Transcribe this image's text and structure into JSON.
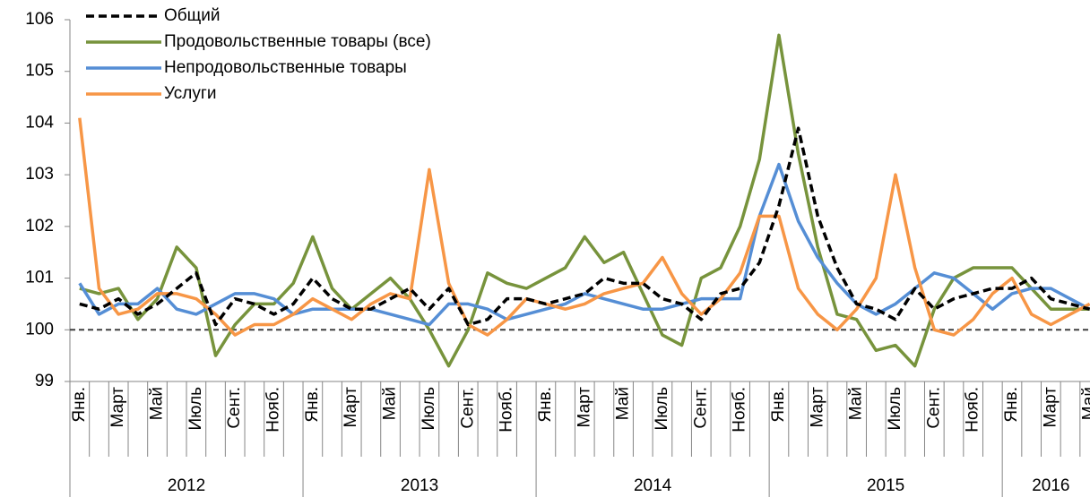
{
  "chart_data": {
    "type": "line",
    "categories": [
      "Янв.",
      null,
      "Март",
      null,
      "Май",
      null,
      "Июль",
      null,
      "Сент.",
      null,
      "Нояб.",
      null,
      "Янв.",
      null,
      "Март",
      null,
      "Май",
      null,
      "Июль",
      null,
      "Сент.",
      null,
      "Нояб.",
      null,
      "Янв.",
      null,
      "Март",
      null,
      "Май",
      null,
      "Июль",
      null,
      "Сент.",
      null,
      "Нояб.",
      null,
      "Янв.",
      null,
      "Март",
      null,
      "Май",
      null,
      "Июль",
      null,
      "Сент.",
      null,
      "Нояб.",
      null,
      "Янв.",
      null,
      "Март",
      null,
      "Май"
    ],
    "years": [
      "2012",
      "2013",
      "2014",
      "2015",
      "2016"
    ],
    "ylim": [
      99,
      106
    ],
    "yticks": [
      99,
      100,
      101,
      102,
      103,
      104,
      105,
      106
    ],
    "reference_line": 100,
    "legend": "top-left",
    "series": [
      {
        "name": "Общий",
        "color": "#000000",
        "dashed": true,
        "values": [
          100.5,
          100.4,
          100.6,
          100.3,
          100.5,
          100.8,
          101.1,
          100.1,
          100.6,
          100.5,
          100.3,
          100.5,
          101.0,
          100.6,
          100.4,
          100.4,
          100.6,
          100.8,
          100.4,
          100.8,
          100.1,
          100.2,
          100.6,
          100.6,
          100.5,
          100.6,
          100.7,
          101.0,
          100.9,
          100.9,
          100.6,
          100.5,
          100.2,
          100.7,
          100.8,
          101.3,
          102.4,
          103.9,
          102.2,
          101.2,
          100.5,
          100.4,
          100.2,
          100.8,
          100.4,
          100.6,
          100.7,
          100.8,
          100.8,
          101.0,
          100.6,
          100.5,
          100.4
        ]
      },
      {
        "name": "Продовольственные товары (все)",
        "color": "#77933c",
        "dashed": false,
        "values": [
          100.8,
          100.7,
          100.8,
          100.2,
          100.6,
          101.6,
          101.2,
          99.5,
          100.1,
          100.5,
          100.5,
          100.9,
          101.8,
          100.8,
          100.4,
          100.7,
          101.0,
          100.6,
          100.0,
          99.3,
          100.0,
          101.1,
          100.9,
          100.8,
          101.0,
          101.2,
          101.8,
          101.3,
          101.5,
          100.7,
          99.9,
          99.7,
          101.0,
          101.2,
          102.0,
          103.3,
          105.7,
          103.4,
          101.6,
          100.3,
          100.2,
          99.6,
          99.7,
          99.3,
          100.4,
          101.0,
          101.2,
          101.2,
          101.2,
          100.8,
          100.4,
          100.4,
          100.4
        ]
      },
      {
        "name": "Непродовольственные товары",
        "color": "#558ed5",
        "dashed": false,
        "values": [
          100.9,
          100.3,
          100.5,
          100.5,
          100.8,
          100.4,
          100.3,
          100.5,
          100.7,
          100.7,
          100.6,
          100.3,
          100.4,
          100.4,
          100.4,
          100.4,
          100.3,
          100.2,
          100.1,
          100.5,
          100.5,
          100.4,
          100.2,
          100.3,
          100.4,
          100.5,
          100.7,
          100.6,
          100.5,
          100.4,
          100.4,
          100.5,
          100.6,
          100.6,
          100.6,
          102.2,
          103.2,
          102.1,
          101.4,
          100.9,
          100.5,
          100.3,
          100.5,
          100.8,
          101.1,
          101.0,
          100.7,
          100.4,
          100.7,
          100.8,
          100.8,
          100.6,
          100.4
        ]
      },
      {
        "name": "Услуги",
        "color": "#f79646",
        "dashed": false,
        "values": [
          104.1,
          100.8,
          100.3,
          100.4,
          100.7,
          100.7,
          100.6,
          100.3,
          99.9,
          100.1,
          100.1,
          100.3,
          100.6,
          100.4,
          100.2,
          100.5,
          100.7,
          100.6,
          103.1,
          100.9,
          100.1,
          99.9,
          100.2,
          100.6,
          100.5,
          100.4,
          100.5,
          100.7,
          100.8,
          100.9,
          101.4,
          100.7,
          100.3,
          100.6,
          101.1,
          102.2,
          102.2,
          100.8,
          100.3,
          100.0,
          100.4,
          101.0,
          103.0,
          101.2,
          100.0,
          99.9,
          100.2,
          100.7,
          101.0,
          100.3,
          100.1,
          100.3,
          100.5
        ]
      }
    ]
  }
}
